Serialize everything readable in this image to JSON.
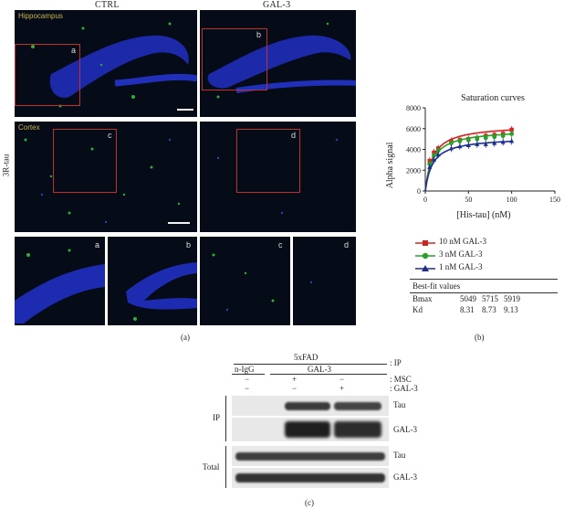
{
  "panel_a": {
    "col_left": "CTRL",
    "col_right": "GAL-3",
    "row_label": "3R-tau",
    "region_top": "Hippocampus",
    "region_mid": "Cortex",
    "box_labels": [
      "a",
      "b",
      "c",
      "d"
    ],
    "caption": "(a)"
  },
  "panel_b": {
    "caption": "(b)",
    "legend": [
      "10 nM GAL-3",
      "3 nM GAL-3",
      "1 nM GAL-3"
    ],
    "best_fit_title": "Best-fit values",
    "rows": [
      {
        "label": "Bmax",
        "values": [
          "5049",
          "5715",
          "5919"
        ]
      },
      {
        "label": "Kd",
        "values": [
          "8.31",
          "8.73",
          "9.13"
        ]
      }
    ]
  },
  "chart_data": {
    "type": "line",
    "title": "Saturation curves",
    "xlabel": "[His-tau] (nM)",
    "ylabel": "Alpha signal",
    "xlim": [
      0,
      150
    ],
    "ylim": [
      0,
      8000
    ],
    "xticks": [
      0,
      50,
      100,
      150
    ],
    "yticks": [
      0,
      2000,
      4000,
      6000,
      8000
    ],
    "x": [
      5,
      10,
      15,
      30,
      40,
      50,
      60,
      70,
      80,
      90,
      100
    ],
    "series": [
      {
        "name": "10 nM GAL-3",
        "color": "#d62020",
        "marker": "square",
        "values": [
          2900,
          3700,
          4100,
          4800,
          4900,
          5000,
          5100,
          5300,
          5400,
          5500,
          5900
        ]
      },
      {
        "name": "3 nM GAL-3",
        "color": "#2aa02a",
        "marker": "circle",
        "values": [
          2600,
          3400,
          3900,
          4600,
          4800,
          4900,
          5000,
          5100,
          5200,
          5300,
          5500
        ]
      },
      {
        "name": "1 nM GAL-3",
        "color": "#1c2f8f",
        "marker": "triangle",
        "values": [
          2300,
          3000,
          3500,
          4100,
          4300,
          4400,
          4500,
          4500,
          4600,
          4700,
          4800
        ]
      }
    ],
    "grid": false
  },
  "panel_c": {
    "caption": "(c)",
    "group": "5xFAD",
    "ip_label": ": IP",
    "col_ngg": "n-IgG",
    "col_gal": "GAL-3",
    "msc_row": [
      "−",
      "+",
      "−"
    ],
    "msc_label": ": MSC",
    "gal_row": [
      "−",
      "−",
      "+"
    ],
    "gal_label": ": GAL-3",
    "side_ip": "IP",
    "side_total": "Total",
    "bands": [
      "Tau",
      "GAL-3",
      "Tau",
      "GAL-3"
    ]
  }
}
